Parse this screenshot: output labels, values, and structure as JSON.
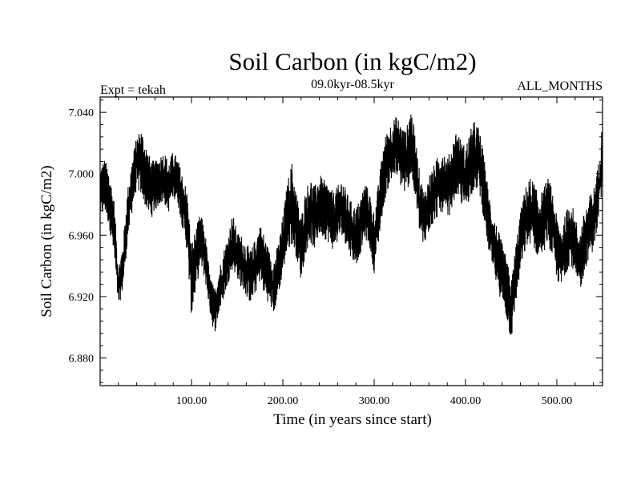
{
  "chart_data": {
    "type": "line",
    "title": "Soil Carbon (in kgC/m2)",
    "subtitle": "09.0kyr-08.5kyr",
    "experiment": "Expt = tekah",
    "months": "ALL_MONTHS",
    "xlabel": "Time (in years since start)",
    "ylabel": "Soil Carbon (in kgC/m2)",
    "xlim": [
      0,
      550
    ],
    "ylim": [
      6.862,
      7.05
    ],
    "x_ticks": [
      {
        "value": 100,
        "label": "100.00"
      },
      {
        "value": 200,
        "label": "200.00"
      },
      {
        "value": 300,
        "label": "300.00"
      },
      {
        "value": 400,
        "label": "400.00"
      },
      {
        "value": 500,
        "label": "500.00"
      }
    ],
    "y_ticks": [
      {
        "value": 6.88,
        "label": "6.880"
      },
      {
        "value": 6.92,
        "label": "6.920"
      },
      {
        "value": 6.96,
        "label": "6.960"
      },
      {
        "value": 7.0,
        "label": "7.000"
      },
      {
        "value": 7.04,
        "label": "7.040"
      }
    ],
    "series": [
      {
        "name": "Soil Carbon",
        "color": "#000000",
        "envelope_x": [
          0,
          5,
          10,
          15,
          20,
          25,
          30,
          35,
          40,
          45,
          50,
          55,
          60,
          65,
          70,
          75,
          80,
          85,
          90,
          95,
          100,
          105,
          110,
          115,
          120,
          125,
          130,
          135,
          140,
          145,
          150,
          155,
          160,
          165,
          170,
          175,
          180,
          185,
          190,
          195,
          200,
          205,
          210,
          215,
          220,
          225,
          230,
          235,
          240,
          245,
          250,
          255,
          260,
          265,
          270,
          275,
          280,
          285,
          290,
          295,
          300,
          305,
          310,
          315,
          320,
          325,
          330,
          335,
          340,
          345,
          350,
          355,
          360,
          365,
          370,
          375,
          380,
          385,
          390,
          395,
          400,
          405,
          410,
          415,
          420,
          425,
          430,
          435,
          440,
          445,
          450,
          455,
          460,
          465,
          470,
          475,
          480,
          485,
          490,
          495,
          500,
          505,
          510,
          515,
          520,
          525,
          530,
          535,
          540,
          545,
          550
        ],
        "envelope_low": [
          6.97,
          6.975,
          6.965,
          6.945,
          6.912,
          6.925,
          6.955,
          6.975,
          6.99,
          6.985,
          6.978,
          6.97,
          6.975,
          6.98,
          6.98,
          6.975,
          6.985,
          6.98,
          6.965,
          6.95,
          6.905,
          6.925,
          6.94,
          6.93,
          6.91,
          6.895,
          6.908,
          6.918,
          6.928,
          6.938,
          6.932,
          6.925,
          6.92,
          6.915,
          6.922,
          6.93,
          6.92,
          6.915,
          6.908,
          6.92,
          6.935,
          6.948,
          6.955,
          6.945,
          6.93,
          6.948,
          6.955,
          6.95,
          6.96,
          6.958,
          6.955,
          6.95,
          6.955,
          6.96,
          6.952,
          6.945,
          6.94,
          6.948,
          6.958,
          6.952,
          6.935,
          6.955,
          6.978,
          6.99,
          6.995,
          6.998,
          6.99,
          6.985,
          6.998,
          6.982,
          6.96,
          6.95,
          6.962,
          6.968,
          6.972,
          6.975,
          6.968,
          6.978,
          6.985,
          6.98,
          6.975,
          6.985,
          6.99,
          6.988,
          6.97,
          6.95,
          6.935,
          6.925,
          6.915,
          6.905,
          6.89,
          6.915,
          6.935,
          6.948,
          6.955,
          6.95,
          6.945,
          6.948,
          6.955,
          6.945,
          6.93,
          6.925,
          6.935,
          6.942,
          6.93,
          6.922,
          6.935,
          6.945,
          6.95,
          6.965,
          6.99
        ],
        "envelope_high": [
          7.005,
          7.01,
          7.002,
          6.985,
          6.94,
          6.955,
          6.99,
          7.01,
          7.025,
          7.03,
          7.02,
          7.01,
          7.008,
          7.012,
          7.015,
          7.008,
          7.015,
          7.01,
          7.0,
          6.99,
          6.955,
          6.965,
          6.975,
          6.962,
          6.935,
          6.925,
          6.938,
          6.95,
          6.96,
          6.975,
          6.962,
          6.96,
          6.955,
          6.95,
          6.958,
          6.968,
          6.96,
          6.95,
          6.945,
          6.955,
          6.972,
          6.995,
          7.008,
          6.988,
          6.972,
          6.99,
          6.998,
          6.992,
          7.0,
          6.996,
          6.994,
          6.988,
          6.992,
          6.998,
          6.988,
          6.982,
          6.978,
          6.985,
          6.995,
          6.988,
          6.975,
          6.995,
          7.02,
          7.03,
          7.035,
          7.038,
          7.032,
          7.028,
          7.045,
          7.025,
          7.0,
          6.988,
          7.0,
          7.005,
          7.012,
          7.018,
          7.01,
          7.018,
          7.03,
          7.022,
          7.018,
          7.028,
          7.035,
          7.03,
          7.012,
          6.99,
          6.975,
          6.965,
          6.955,
          6.945,
          6.93,
          6.955,
          6.975,
          6.99,
          6.998,
          6.995,
          6.985,
          6.99,
          6.998,
          6.99,
          6.972,
          6.965,
          6.975,
          6.985,
          6.972,
          6.962,
          6.975,
          6.985,
          6.99,
          7.005,
          7.035
        ]
      }
    ]
  }
}
